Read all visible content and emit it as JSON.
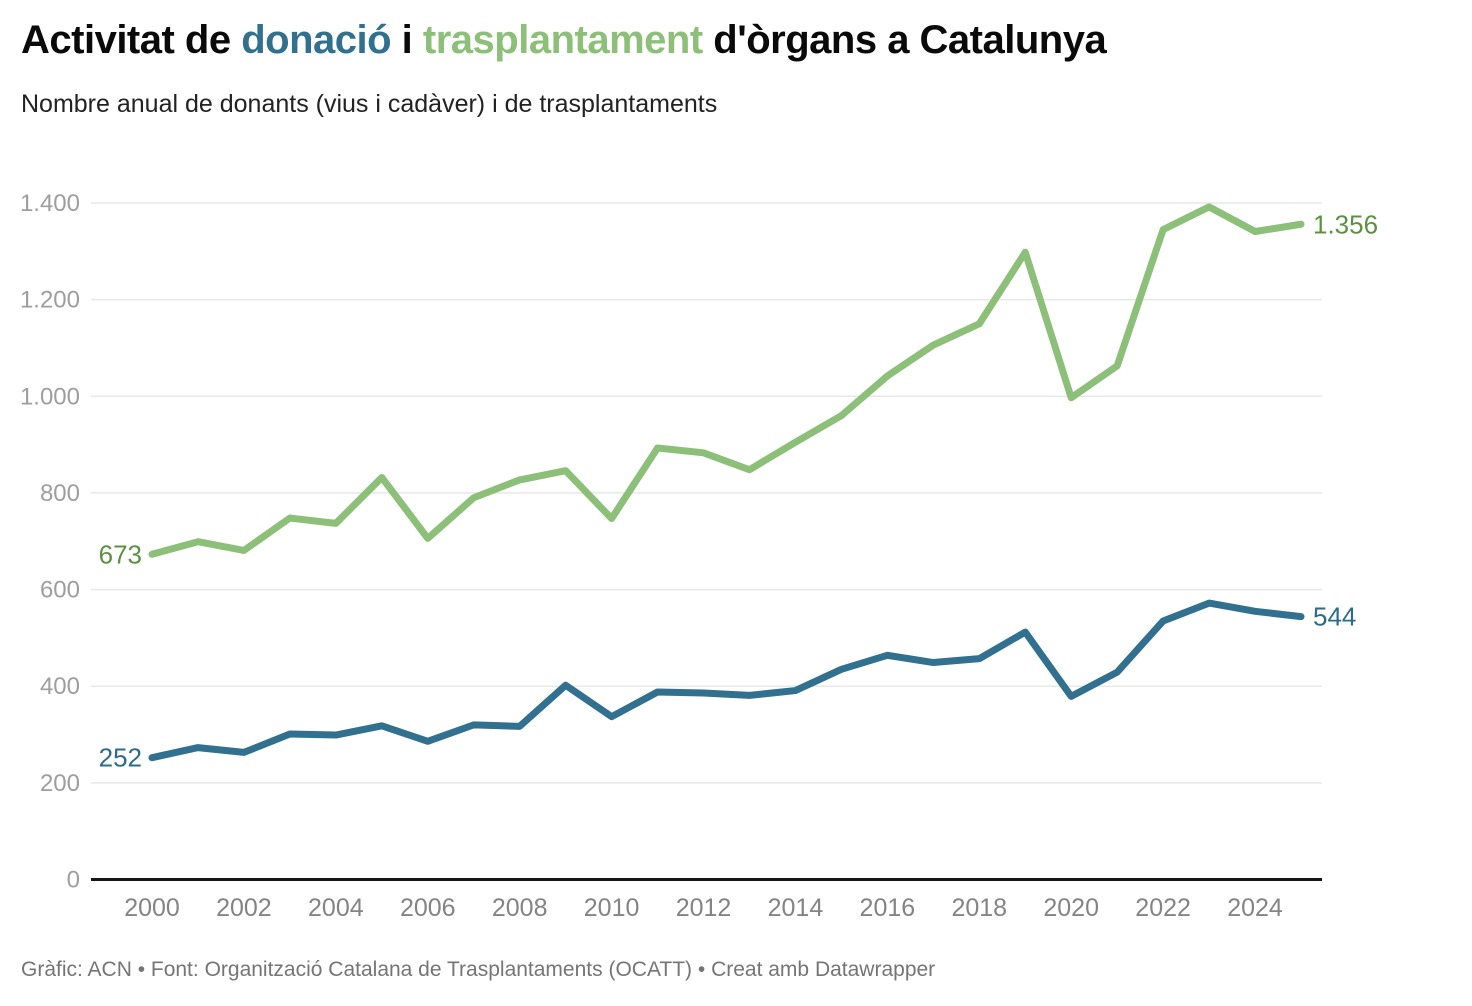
{
  "title": {
    "part1": "Activitat de ",
    "donacio": "donació",
    "part2": " i ",
    "trasplantament": "trasplantament",
    "part3": " d'òrgans a Catalunya"
  },
  "subtitle": "Nombre anual de donants (vius i cadàver) i de trasplantaments",
  "footer": "Gràfic: ACN • Font: Organització Catalana de Trasplantaments (OCATT) • Creat amb Datawrapper",
  "colors": {
    "accent_teal": "#31708f",
    "accent_green": "#8cbf77",
    "teal_label": "#2d6b89",
    "green_label": "#5d9141",
    "grid": "#e8e8e8",
    "axis": "#161616",
    "ytick_text": "#9e9e9e",
    "xtick_text": "#848484",
    "footer_text": "#757575",
    "title_text": "#0a0a0a",
    "subtitle_text": "#222222"
  },
  "chart_data": {
    "type": "line",
    "title": "Activitat de donació i trasplantament d'òrgans a Catalunya",
    "xlabel": "",
    "ylabel": "",
    "x": [
      2000,
      2001,
      2002,
      2003,
      2004,
      2005,
      2006,
      2007,
      2008,
      2009,
      2010,
      2011,
      2012,
      2013,
      2014,
      2015,
      2016,
      2017,
      2018,
      2019,
      2020,
      2021,
      2022,
      2023,
      2024,
      2025
    ],
    "ylim": [
      0,
      1400
    ],
    "grid": true,
    "legend": "direct-labels",
    "yticks": [
      {
        "value": 0,
        "label": "0"
      },
      {
        "value": 200,
        "label": "200"
      },
      {
        "value": 400,
        "label": "400"
      },
      {
        "value": 600,
        "label": "600"
      },
      {
        "value": 800,
        "label": "800"
      },
      {
        "value": 1000,
        "label": "1.000"
      },
      {
        "value": 1200,
        "label": "1.200"
      },
      {
        "value": 1400,
        "label": "1.400"
      }
    ],
    "xticks": [
      {
        "value": 2000,
        "label": "2000"
      },
      {
        "value": 2002,
        "label": "2002"
      },
      {
        "value": 2004,
        "label": "2004"
      },
      {
        "value": 2006,
        "label": "2006"
      },
      {
        "value": 2008,
        "label": "2008"
      },
      {
        "value": 2010,
        "label": "2010"
      },
      {
        "value": 2012,
        "label": "2012"
      },
      {
        "value": 2014,
        "label": "2014"
      },
      {
        "value": 2016,
        "label": "2016"
      },
      {
        "value": 2018,
        "label": "2018"
      },
      {
        "value": 2020,
        "label": "2020"
      },
      {
        "value": 2022,
        "label": "2022"
      },
      {
        "value": 2024,
        "label": "2024"
      }
    ],
    "series": [
      {
        "name": "trasplantaments",
        "color": "#8cbf77",
        "label_color": "#5d9141",
        "start_label": "673",
        "end_label": "1.356",
        "values": [
          673,
          699,
          681,
          748,
          737,
          832,
          706,
          790,
          827,
          846,
          747,
          893,
          883,
          848,
          905,
          960,
          1042,
          1106,
          1150,
          1298,
          997,
          1063,
          1345,
          1392,
          1341,
          1356
        ]
      },
      {
        "name": "donants",
        "color": "#31708e",
        "label_color": "#2d6b89",
        "start_label": "252",
        "end_label": "544",
        "values": [
          252,
          273,
          263,
          301,
          299,
          318,
          286,
          320,
          317,
          402,
          337,
          388,
          386,
          381,
          391,
          435,
          464,
          449,
          457,
          512,
          379,
          429,
          535,
          572,
          555,
          544
        ]
      }
    ]
  }
}
